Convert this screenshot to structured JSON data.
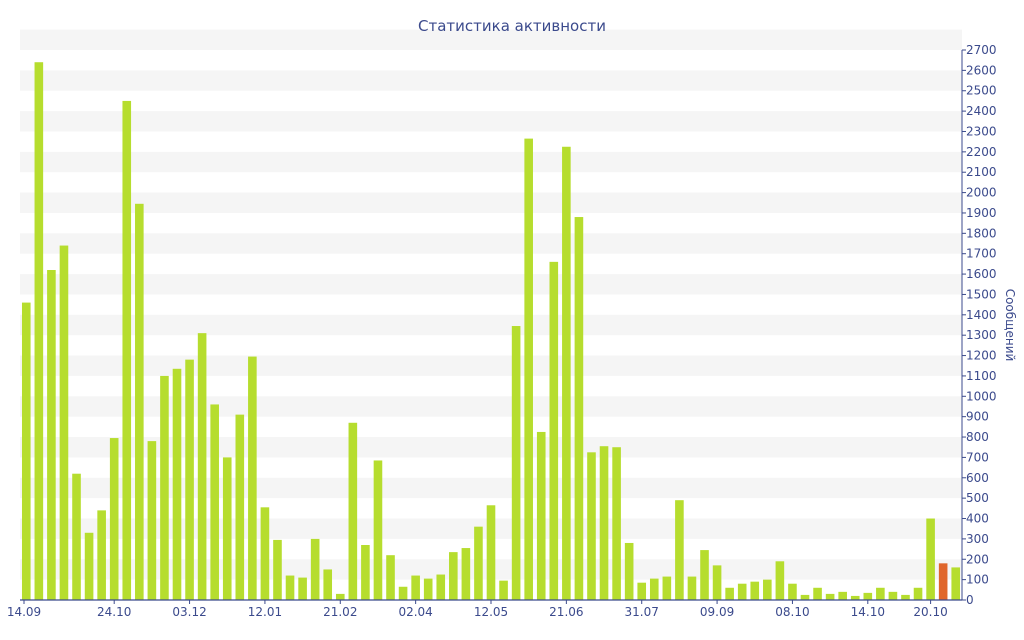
{
  "chart_data": {
    "type": "bar",
    "title": "Статистика активности",
    "ylabel": "Сообщений",
    "ylim": [
      0,
      2700
    ],
    "yticks": [
      0,
      100,
      200,
      300,
      400,
      500,
      600,
      700,
      800,
      900,
      1000,
      1100,
      1200,
      1300,
      1400,
      1500,
      1600,
      1700,
      1800,
      1900,
      2000,
      2100,
      2200,
      2300,
      2400,
      2500,
      2600,
      2700
    ],
    "x_tick_labels": [
      {
        "label": "14.09",
        "index": 0
      },
      {
        "label": "24.10",
        "index": 7
      },
      {
        "label": "03.12",
        "index": 13
      },
      {
        "label": "12.01",
        "index": 19
      },
      {
        "label": "21.02",
        "index": 25
      },
      {
        "label": "02.04",
        "index": 31
      },
      {
        "label": "12.05",
        "index": 37
      },
      {
        "label": "21.06",
        "index": 43
      },
      {
        "label": "31.07",
        "index": 49
      },
      {
        "label": "09.09",
        "index": 55
      },
      {
        "label": "08.10",
        "index": 61
      },
      {
        "label": "14.10",
        "index": 67
      },
      {
        "label": "20.10",
        "index": 72
      }
    ],
    "values": [
      1460,
      2640,
      1620,
      1740,
      620,
      330,
      440,
      795,
      2450,
      1945,
      780,
      1100,
      1135,
      1180,
      1310,
      960,
      700,
      910,
      1195,
      455,
      295,
      120,
      110,
      300,
      150,
      30,
      870,
      270,
      685,
      220,
      65,
      120,
      105,
      125,
      235,
      255,
      360,
      465,
      95,
      1345,
      2265,
      825,
      1660,
      2225,
      1880,
      725,
      755,
      750,
      280,
      85,
      105,
      115,
      490,
      115,
      245,
      170,
      60,
      80,
      90,
      100,
      190,
      80,
      25,
      60,
      30,
      40,
      20,
      35,
      60,
      40,
      25,
      60,
      400,
      180,
      160
    ],
    "highlight_index": 73,
    "colors": {
      "bar": "#b6dd2e",
      "highlight": "#e0662c",
      "text": "#3b4a8c",
      "band": "#f5f5f5",
      "axis": "#3b4a8c"
    }
  }
}
